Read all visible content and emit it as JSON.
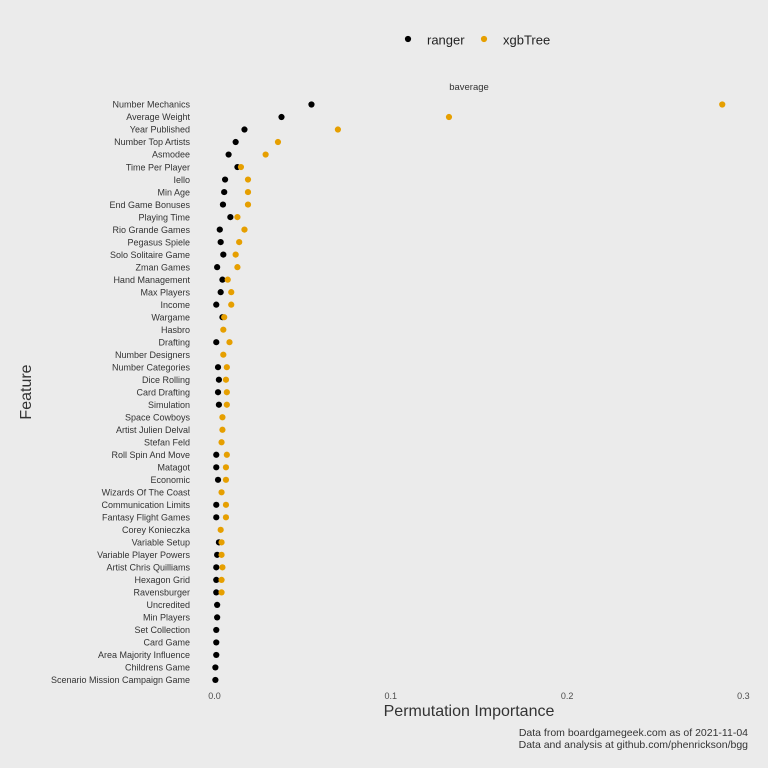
{
  "chart_data": {
    "type": "scatter",
    "facet_label": "baverage",
    "xlabel": "Permutation Importance",
    "ylabel": "Feature",
    "xlim": [
      -0.005,
      0.3
    ],
    "xticks": [
      0.0,
      0.1,
      0.2,
      0.3
    ],
    "xtick_labels": [
      "0.0",
      "0.1",
      "0.2",
      "0.3"
    ],
    "grid": false,
    "legend_position": "top",
    "caption_lines": [
      "Data from boardgamegeek.com as of 2021-11-04",
      "Data and analysis at github.com/phenrickson/bgg"
    ],
    "categories": [
      "Number Mechanics",
      "Average Weight",
      "Year Published",
      "Number Top Artists",
      "Asmodee",
      "Time Per Player",
      "Iello",
      "Min Age",
      "End Game Bonuses",
      "Playing Time",
      "Rio Grande Games",
      "Pegasus Spiele",
      "Solo Solitaire Game",
      "Zman Games",
      "Hand Management",
      "Max Players",
      "Income",
      "Wargame",
      "Hasbro",
      "Drafting",
      "Number Designers",
      "Number Categories",
      "Dice Rolling",
      "Card Drafting",
      "Simulation",
      "Space Cowboys",
      "Artist Julien Delval",
      "Stefan Feld",
      "Roll Spin And Move",
      "Matagot",
      "Economic",
      "Wizards Of The Coast",
      "Communication Limits",
      "Fantasy Flight Games",
      "Corey Konieczka",
      "Variable Setup",
      "Variable Player Powers",
      "Artist Chris Quilliams",
      "Hexagon Grid",
      "Ravensburger",
      "Uncredited",
      "Min Players",
      "Set Collection",
      "Card Game",
      "Area Majority Influence",
      "Childrens Game",
      "Scenario Mission Campaign Game"
    ],
    "series": [
      {
        "name": "ranger",
        "color": "#000000",
        "values": [
          0.055,
          0.038,
          0.017,
          0.012,
          0.008,
          0.013,
          0.006,
          0.0055,
          0.0048,
          0.009,
          0.003,
          0.0035,
          0.005,
          0.0015,
          0.0045,
          0.0035,
          0.001,
          0.0045,
          null,
          0.001,
          null,
          0.002,
          0.0025,
          0.002,
          0.0025,
          null,
          null,
          null,
          0.001,
          0.001,
          0.002,
          null,
          0.001,
          0.001,
          null,
          0.0025,
          0.0015,
          0.001,
          0.001,
          0.001,
          0.0015,
          0.0015,
          0.001,
          0.001,
          0.001,
          0.0005,
          0.0005
        ]
      },
      {
        "name": "xgbTree",
        "color": "#E69F00",
        "values": [
          0.288,
          0.133,
          0.07,
          0.036,
          0.029,
          0.015,
          0.019,
          0.019,
          0.019,
          0.013,
          0.017,
          0.014,
          0.012,
          0.013,
          0.0075,
          0.0095,
          0.0095,
          0.0055,
          0.005,
          0.0085,
          0.005,
          0.007,
          0.0065,
          0.007,
          0.007,
          0.0045,
          0.0045,
          0.004,
          0.007,
          0.0065,
          0.0065,
          0.004,
          0.0065,
          0.0065,
          0.0035,
          0.004,
          0.004,
          0.0045,
          0.004,
          0.004,
          null,
          null,
          null,
          null,
          null,
          null,
          null
        ]
      }
    ]
  }
}
